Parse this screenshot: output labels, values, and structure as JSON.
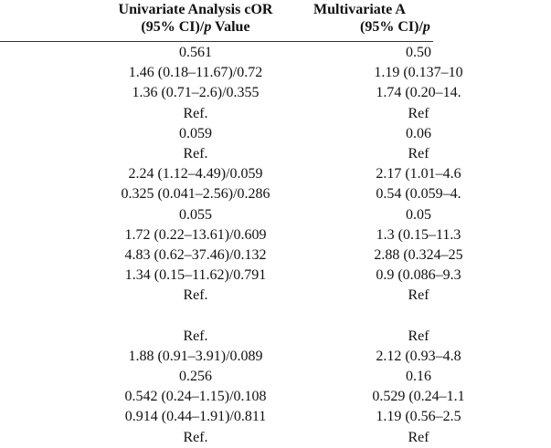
{
  "header": {
    "univariate_line1": "Univariate Analysis cOR",
    "univariate_line2_prefix": "(95% CI)/",
    "univariate_line2_p": "p",
    "univariate_line2_suffix": " Value",
    "multivariate_line1": "Multivariate A",
    "multivariate_line2_prefix": "(95% CI)/",
    "multivariate_line2_p": "p"
  },
  "rows": [
    {
      "uni": "0.561",
      "multi": "0.50"
    },
    {
      "uni": "1.46 (0.18–11.67)/0.72",
      "multi": "1.19 (0.137–10"
    },
    {
      "uni": "1.36 (0.71–2.6)/0.355",
      "multi": "1.74 (0.20–14."
    },
    {
      "uni": "Ref.",
      "multi": "Ref"
    },
    {
      "uni": "0.059",
      "multi": "0.06"
    },
    {
      "uni": "Ref.",
      "multi": "Ref"
    },
    {
      "uni": "2.24 (1.12–4.49)/0.059",
      "multi": "2.17 (1.01–4.6"
    },
    {
      "uni": "0.325 (0.041–2.56)/0.286",
      "multi": "0.54 (0.059–4."
    },
    {
      "uni": "0.055",
      "multi": "0.05"
    },
    {
      "uni": "1.72 (0.22–13.61)/0.609",
      "multi": "1.3 (0.15–11.3"
    },
    {
      "uni": "4.83 (0.62–37.46)/0.132",
      "multi": "2.88 (0.324–25"
    },
    {
      "uni": "1.34 (0.15–11.62)/0.791",
      "multi": "0.9 (0.086–9.3"
    },
    {
      "uni": "Ref.",
      "multi": "Ref"
    },
    {
      "uni": "",
      "multi": ""
    },
    {
      "uni": "Ref.",
      "multi": "Ref"
    },
    {
      "uni": "1.88 (0.91–3.91)/0.089",
      "multi": "2.12 (0.93–4.8"
    },
    {
      "uni": "0.256",
      "multi": "0.16"
    },
    {
      "uni": "0.542 (0.24–1.15)/0.108",
      "multi": "0.529 (0.24–1.1"
    },
    {
      "uni": "0.914 (0.44–1.91)/0.811",
      "multi": "1.19 (0.56–2.5"
    },
    {
      "uni": "Ref.",
      "multi": "Ref"
    }
  ]
}
